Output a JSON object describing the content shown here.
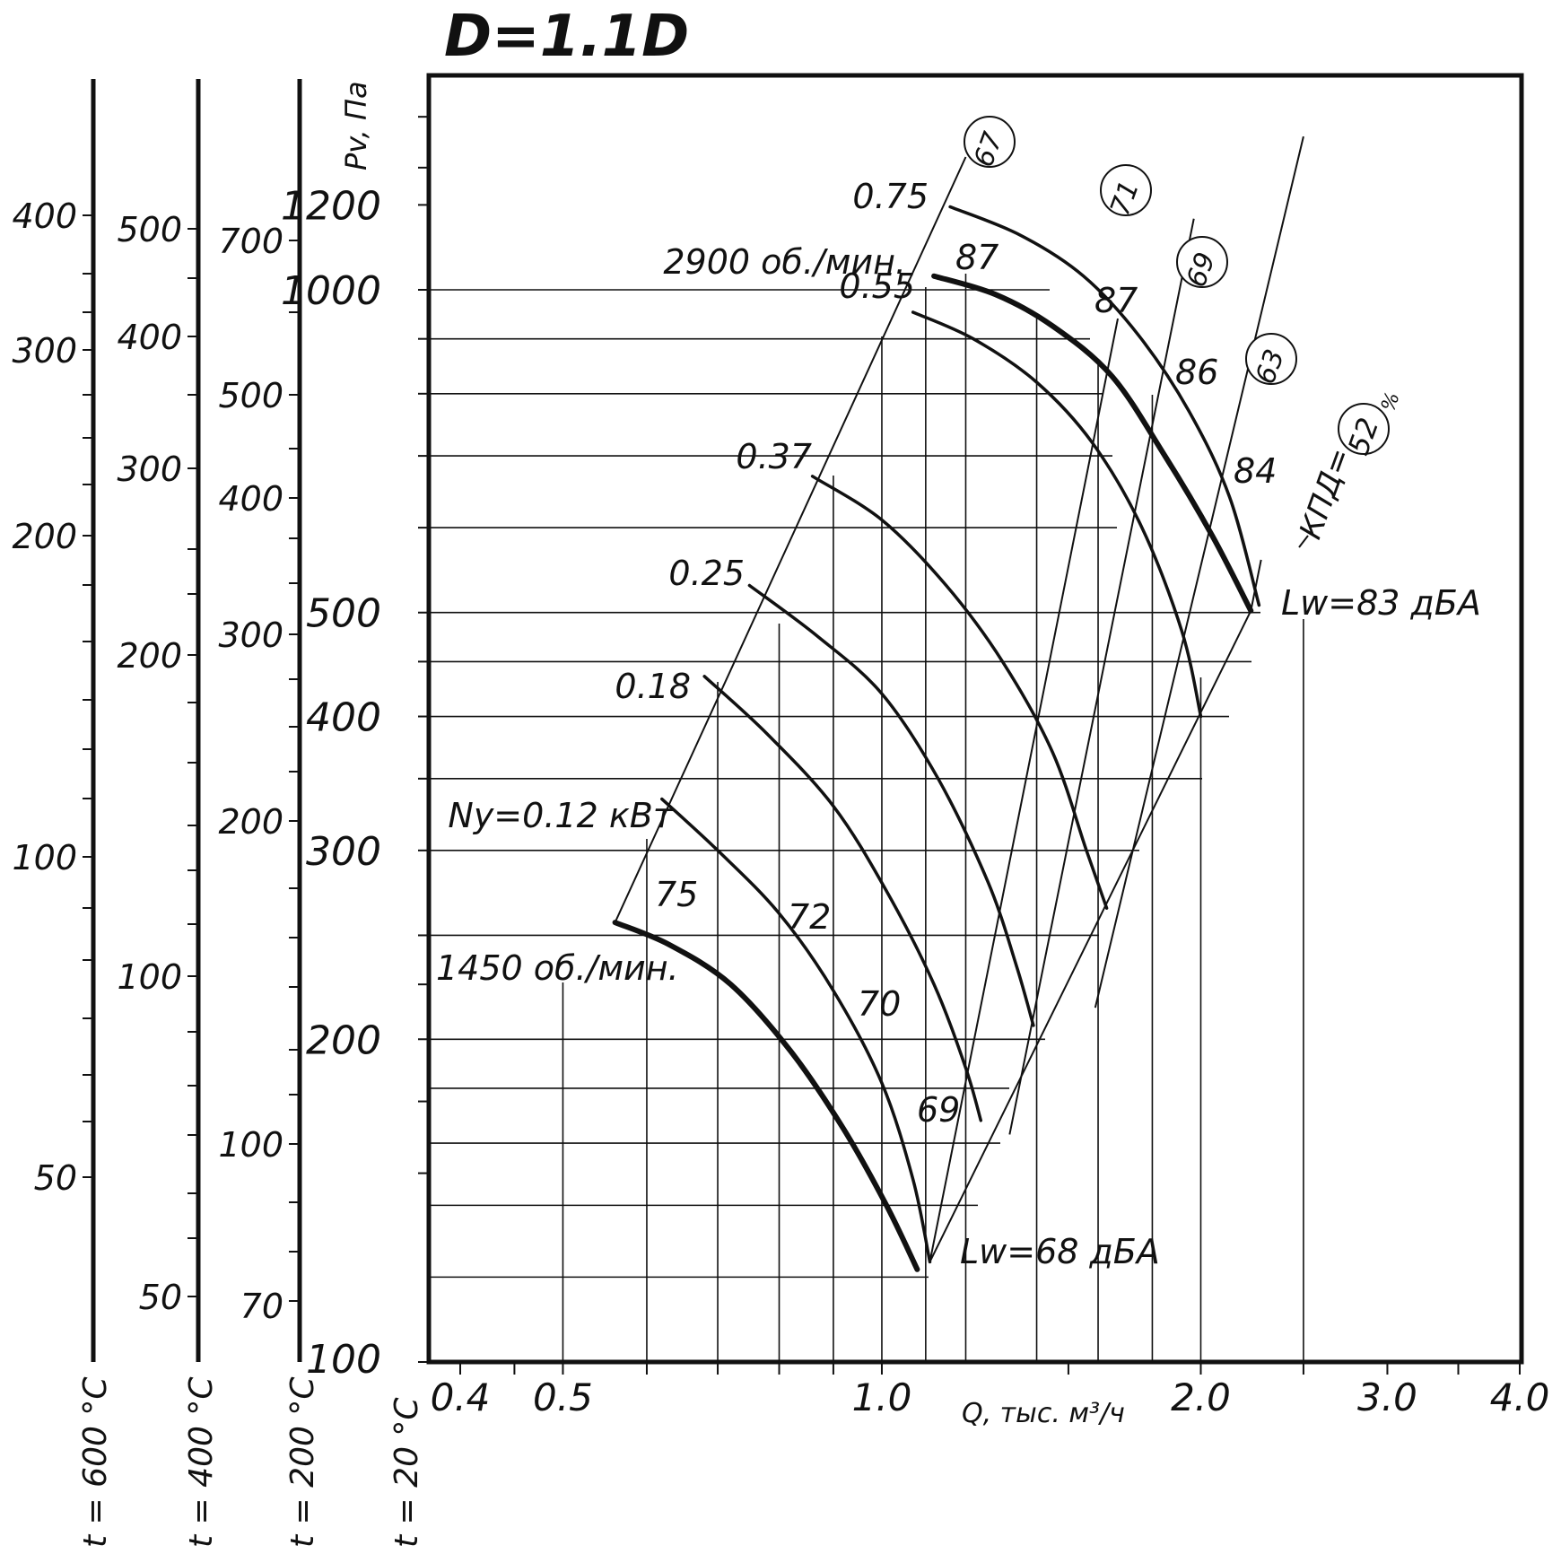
{
  "chart_data": {
    "type": "line",
    "title": "D=1.1D",
    "xlabel": "Q, тыс. м³/ч",
    "ylabel": "Pv, Па",
    "x_scale": "log",
    "y_scale": "log",
    "xlim": [
      0.4,
      4.0
    ],
    "ylim": [
      100,
      1450
    ],
    "x_ticks": [
      0.4,
      0.5,
      1.0,
      2.0,
      3.0,
      4.0
    ],
    "x_tick_labels": [
      "0.4",
      "0.5",
      "1.0",
      "2.0",
      "3.0",
      "4.0"
    ],
    "y_ticks": [
      100,
      200,
      300,
      400,
      500,
      1000,
      1200
    ],
    "y_tick_labels": [
      "100",
      "200",
      "300",
      "400",
      "500",
      "1000",
      "1200"
    ],
    "temperature_scales": [
      {
        "label": "t = 20 °C",
        "ticks": [
          100,
          200,
          300,
          400,
          500,
          1000,
          1200
        ]
      },
      {
        "label": "t = 200 °C",
        "ticks": [
          70,
          100,
          200,
          300,
          400,
          500,
          700
        ]
      },
      {
        "label": "t = 400 °C",
        "ticks": [
          50,
          100,
          200,
          300,
          400,
          500
        ]
      },
      {
        "label": "t = 600 °C",
        "ticks": [
          50,
          100,
          200,
          300,
          400
        ]
      }
    ],
    "series": [
      {
        "name": "2900 об./мин.",
        "speed": true,
        "points": [
          [
            1.12,
            1030
          ],
          [
            1.28,
            990
          ],
          [
            1.45,
            925
          ],
          [
            1.65,
            830
          ],
          [
            1.85,
            700
          ],
          [
            2.05,
            590
          ],
          [
            2.23,
            502
          ]
        ]
      },
      {
        "name": "1450 об./мин.",
        "speed": true,
        "points": [
          [
            0.56,
            257
          ],
          [
            0.63,
            245
          ],
          [
            0.72,
            225
          ],
          [
            0.82,
            195
          ],
          [
            0.92,
            165
          ],
          [
            1.01,
            140
          ],
          [
            1.08,
            122
          ]
        ]
      },
      {
        "name": "0.75",
        "points": [
          [
            1.16,
            1195
          ],
          [
            1.35,
            1125
          ],
          [
            1.55,
            1030
          ],
          [
            1.75,
            905
          ],
          [
            1.95,
            770
          ],
          [
            2.13,
            640
          ],
          [
            2.27,
            508
          ]
        ]
      },
      {
        "name": "0.55",
        "points": [
          [
            1.07,
            953
          ],
          [
            1.22,
            900
          ],
          [
            1.4,
            820
          ],
          [
            1.58,
            720
          ],
          [
            1.76,
            600
          ],
          [
            1.92,
            480
          ],
          [
            2.0,
            400
          ]
        ]
      },
      {
        "name": "0.37",
        "points": [
          [
            0.86,
            670
          ],
          [
            1.0,
            610
          ],
          [
            1.15,
            530
          ],
          [
            1.3,
            450
          ],
          [
            1.45,
            370
          ],
          [
            1.56,
            300
          ],
          [
            1.63,
            265
          ]
        ]
      },
      {
        "name": "0.25",
        "points": [
          [
            0.75,
            530
          ],
          [
            0.87,
            475
          ],
          [
            1.0,
            420
          ],
          [
            1.13,
            350
          ],
          [
            1.26,
            280
          ],
          [
            1.34,
            234
          ],
          [
            1.39,
            206
          ]
        ]
      },
      {
        "name": "0.18",
        "points": [
          [
            0.68,
            436
          ],
          [
            0.78,
            385
          ],
          [
            0.9,
            330
          ],
          [
            1.01,
            275
          ],
          [
            1.12,
            225
          ],
          [
            1.2,
            188
          ],
          [
            1.24,
            168
          ]
        ]
      },
      {
        "name": "Ny=0.12 кВт",
        "points": [
          [
            0.62,
            335
          ],
          [
            0.7,
            300
          ],
          [
            0.8,
            262
          ],
          [
            0.9,
            222
          ],
          [
            1.0,
            182
          ],
          [
            1.07,
            148
          ],
          [
            1.11,
            124
          ]
        ]
      }
    ],
    "speed_lines": [
      {
        "label": "67",
        "from": [
          0.56,
          257
        ],
        "to": [
          1.2,
          1330
        ]
      },
      {
        "label": "71",
        "from": [
          1.11,
          124
        ],
        "to": [
          1.67,
          940
        ]
      },
      {
        "label": "69",
        "from": [
          1.32,
          163
        ],
        "to": [
          1.97,
          1165
        ]
      },
      {
        "label": "63",
        "from": [
          1.59,
          214
        ],
        "to": [
          2.5,
          1390
        ]
      }
    ],
    "efficiency_label": "КПД=52%",
    "point_labels": [
      "87",
      "87",
      "86",
      "84",
      "75",
      "72",
      "70",
      "69"
    ],
    "noise_labels": [
      "Lw=83 дБА",
      "Lw=68 дБА"
    ],
    "circled_labels": [
      "67",
      "71",
      "69",
      "63",
      "52"
    ],
    "annotation_texts": {
      "rpm_high": "2900 об./мин.",
      "rpm_low": "1450 об./мин.",
      "power_label": "Ny=0.12 кВт",
      "kpd_prefix": "КПД="
    }
  }
}
